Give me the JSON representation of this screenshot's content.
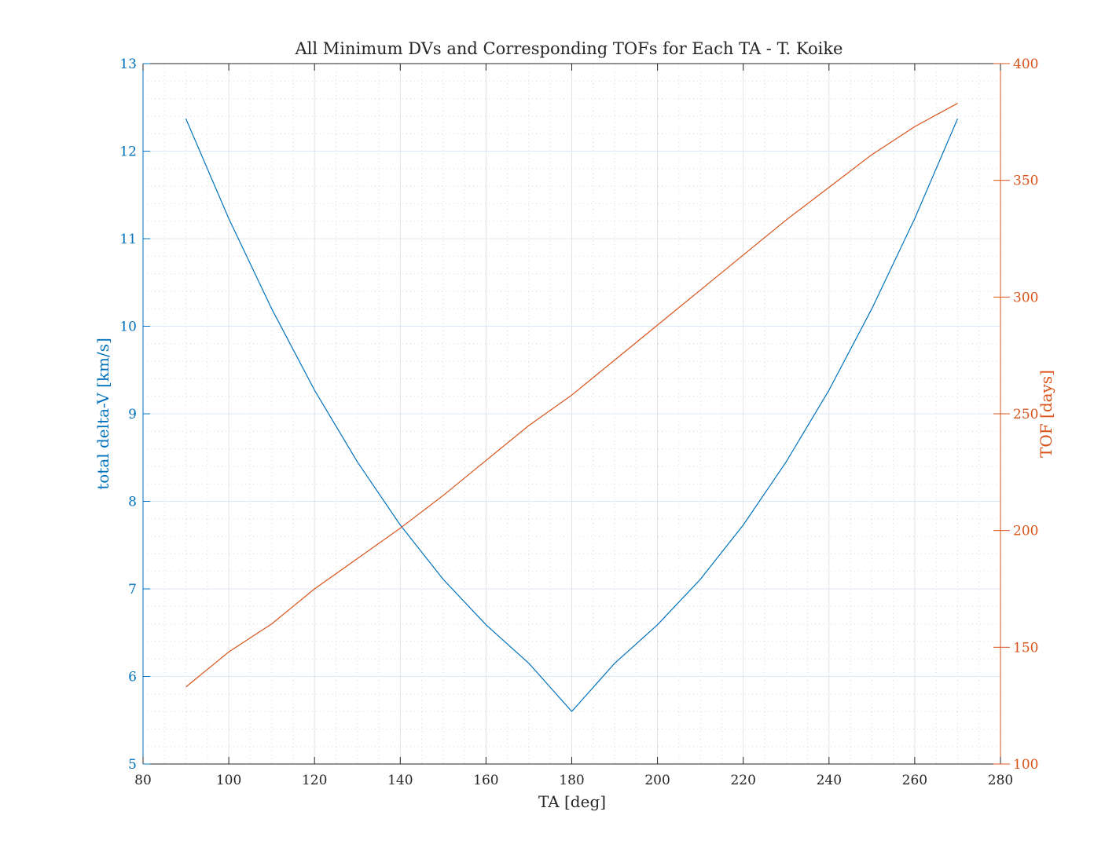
{
  "chart_data": {
    "type": "line",
    "title": "All Minimum DVs and Corresponding TOFs for Each TA - T. Koike",
    "xlabel": "TA [deg]",
    "ylabel_left": "total delta-V [km/s]",
    "ylabel_right": "TOF [days]",
    "xlim": [
      80,
      280
    ],
    "xticks": [
      80,
      100,
      120,
      140,
      160,
      180,
      200,
      220,
      240,
      260,
      280
    ],
    "ylim_left": [
      5,
      13
    ],
    "yticks_left": [
      5,
      6,
      7,
      8,
      9,
      10,
      11,
      12,
      13
    ],
    "ylim_right": [
      100,
      400
    ],
    "yticks_right": [
      100,
      150,
      200,
      250,
      300,
      350,
      400
    ],
    "grid": true,
    "minor_grid": true,
    "colors": {
      "left": "#0072BD",
      "right": "#D95319",
      "axis": "#262626"
    },
    "series": [
      {
        "axis": "left",
        "x": [
          90,
          100,
          110,
          120,
          130,
          140,
          150,
          160,
          170,
          180,
          190,
          200,
          210,
          220,
          230,
          240,
          250,
          260,
          270
        ],
        "values": [
          12.37,
          11.23,
          10.2,
          9.27,
          8.45,
          7.73,
          7.11,
          6.59,
          6.15,
          5.6,
          6.15,
          6.59,
          7.11,
          7.73,
          8.45,
          9.27,
          10.2,
          11.23,
          12.37
        ]
      },
      {
        "axis": "right",
        "x": [
          90,
          100,
          110,
          120,
          130,
          140,
          150,
          160,
          170,
          180,
          190,
          200,
          210,
          220,
          230,
          240,
          250,
          260,
          270
        ],
        "values": [
          133,
          148,
          160,
          175,
          188,
          201,
          215,
          230,
          245,
          258,
          273,
          288,
          303,
          318,
          333,
          347,
          361,
          373,
          383
        ]
      }
    ]
  }
}
